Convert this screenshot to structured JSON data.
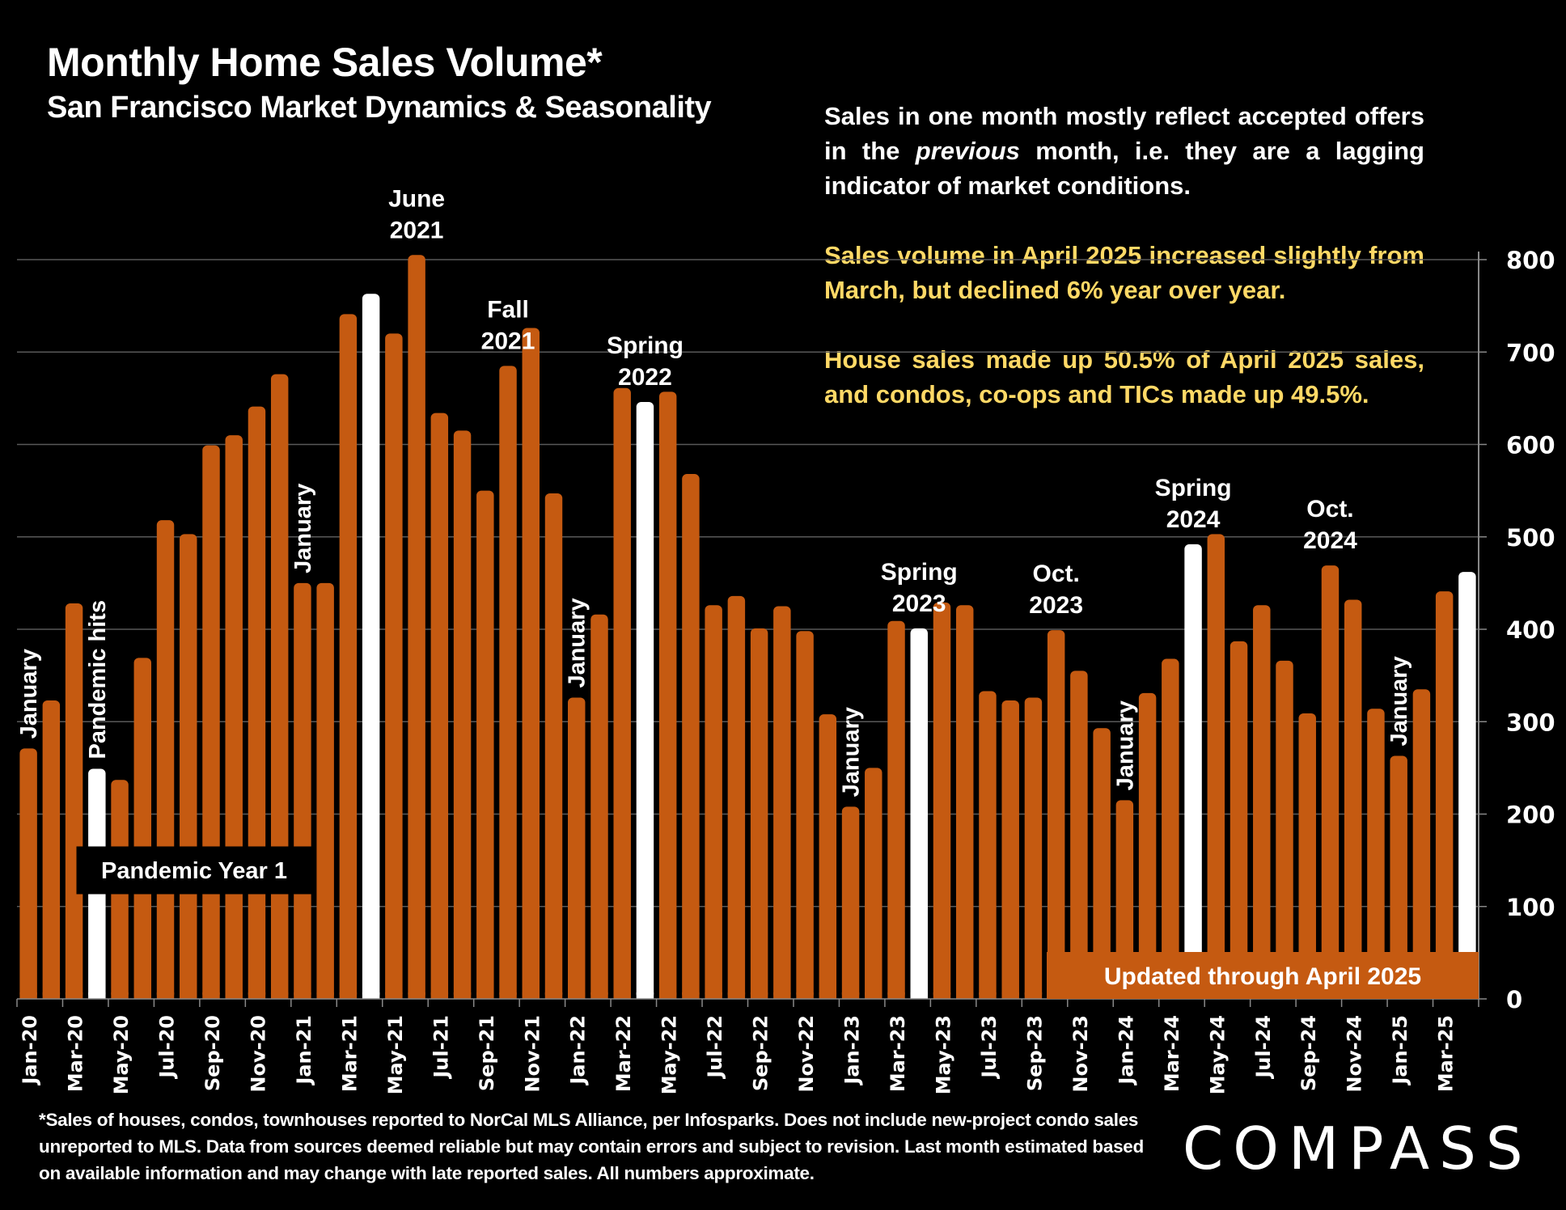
{
  "header": {
    "title": "Monthly Home Sales Volume*",
    "subtitle": "San Francisco Market Dynamics & Seasonality"
  },
  "notes": {
    "p1_part1": "Sales in one month mostly reflect accepted offers in the ",
    "p1_italic": "previous",
    "p1_part2": " month, i.e. they are a lagging indicator of market conditions.",
    "p2": "Sales volume in April 2025 increased slightly from March, but declined 6% year over year.",
    "p3": "House sales made up 50.5% of April 2025 sales, and condos, co-ops and TICs made up 49.5%."
  },
  "footer": {
    "text": "*Sales of houses, condos, townhouses reported to NorCal MLS Alliance, per Infosparks. Does not include new-project condo sales unreported to MLS. Data from sources deemed reliable but may contain errors and subject to revision. Last month estimated based on available information and may change with late reported sales. All numbers approximate.",
    "logo": "COMPASS"
  },
  "colors": {
    "bar": "#C55A11",
    "highlight": "#FFFFFF",
    "note_yellow": "#FFD966",
    "background": "#000000",
    "grid": "#595959"
  },
  "chart_data": {
    "type": "bar",
    "title": "Monthly Home Sales Volume*",
    "subtitle": "San Francisco Market Dynamics & Seasonality",
    "xlabel": "",
    "ylabel": "",
    "ylim": [
      0,
      800
    ],
    "yticks": [
      0,
      100,
      200,
      300,
      400,
      500,
      600,
      700,
      800
    ],
    "y_axis_side": "right",
    "grid": true,
    "categories": [
      "Jan-20",
      "Feb-20",
      "Mar-20",
      "Apr-20",
      "May-20",
      "Jun-20",
      "Jul-20",
      "Aug-20",
      "Sep-20",
      "Oct-20",
      "Nov-20",
      "Dec-20",
      "Jan-21",
      "Feb-21",
      "Mar-21",
      "Apr-21",
      "May-21",
      "Jun-21",
      "Jul-21",
      "Aug-21",
      "Sep-21",
      "Oct-21",
      "Nov-21",
      "Dec-21",
      "Jan-22",
      "Feb-22",
      "Mar-22",
      "Apr-22",
      "May-22",
      "Jun-22",
      "Jul-22",
      "Aug-22",
      "Sep-22",
      "Oct-22",
      "Nov-22",
      "Dec-22",
      "Jan-23",
      "Feb-23",
      "Mar-23",
      "Apr-23",
      "May-23",
      "Jun-23",
      "Jul-23",
      "Aug-23",
      "Sep-23",
      "Oct-23",
      "Nov-23",
      "Dec-23",
      "Jan-24",
      "Feb-24",
      "Mar-24",
      "Apr-24",
      "May-24",
      "Jun-24",
      "Jul-24",
      "Aug-24",
      "Sep-24",
      "Oct-24",
      "Nov-24",
      "Dec-24",
      "Jan-25",
      "Feb-25",
      "Mar-25",
      "Apr-25"
    ],
    "tick_labels_shown": [
      "Jan-20",
      "Mar-20",
      "May-20",
      "Jul-20",
      "Sep-20",
      "Nov-20",
      "Jan-21",
      "Mar-21",
      "May-21",
      "Jul-21",
      "Sep-21",
      "Nov-21",
      "Jan-22",
      "Mar-22",
      "May-22",
      "Jul-22",
      "Sep-22",
      "Nov-22",
      "Jan-23",
      "Mar-23",
      "May-23",
      "Jul-23",
      "Sep-23",
      "Nov-23",
      "Jan-24",
      "Mar-24",
      "May-24",
      "Jul-24",
      "Sep-24",
      "Nov-24",
      "Jan-25",
      "Mar-25"
    ],
    "values": [
      271,
      323,
      428,
      249,
      237,
      369,
      518,
      503,
      599,
      610,
      641,
      676,
      450,
      450,
      741,
      763,
      720,
      805,
      634,
      615,
      550,
      685,
      726,
      547,
      326,
      416,
      661,
      646,
      657,
      568,
      426,
      436,
      401,
      425,
      398,
      308,
      208,
      250,
      409,
      401,
      429,
      426,
      333,
      323,
      326,
      399,
      355,
      293,
      215,
      331,
      368,
      492,
      503,
      387,
      426,
      366,
      309,
      469,
      432,
      314,
      263,
      335,
      441,
      462
    ],
    "highlighted": [
      "Apr-20",
      "Apr-21",
      "Apr-22",
      "Apr-23",
      "Apr-24",
      "Apr-25"
    ],
    "annotations": [
      {
        "text": "January",
        "at": "Jan-20",
        "orientation": "vertical"
      },
      {
        "text": "Pandemic hits",
        "at": "Apr-20",
        "orientation": "vertical"
      },
      {
        "text": "January",
        "at": "Jan-21",
        "orientation": "vertical"
      },
      {
        "text": "June|2021",
        "at": "Jun-21",
        "orientation": "horizontal"
      },
      {
        "text": "Fall|2021",
        "at": "Oct-21",
        "orientation": "horizontal"
      },
      {
        "text": "January",
        "at": "Jan-22",
        "orientation": "vertical"
      },
      {
        "text": "Spring|2022",
        "at": "Apr-22",
        "orientation": "horizontal"
      },
      {
        "text": "January",
        "at": "Jan-23",
        "orientation": "vertical"
      },
      {
        "text": "Spring|2023",
        "at": "Apr-23",
        "orientation": "horizontal"
      },
      {
        "text": "Oct.|2023",
        "at": "Oct-23",
        "orientation": "horizontal"
      },
      {
        "text": "January",
        "at": "Jan-24",
        "orientation": "vertical"
      },
      {
        "text": "Spring|2024",
        "at": "Apr-24",
        "orientation": "horizontal"
      },
      {
        "text": "Oct.|2024",
        "at": "Oct-24",
        "orientation": "horizontal"
      },
      {
        "text": "January",
        "at": "Jan-25",
        "orientation": "vertical"
      }
    ],
    "boxes": [
      {
        "text": "Pandemic Year 1",
        "style": "black-box"
      },
      {
        "text": "Updated through April 2025",
        "style": "orange-box"
      }
    ]
  }
}
